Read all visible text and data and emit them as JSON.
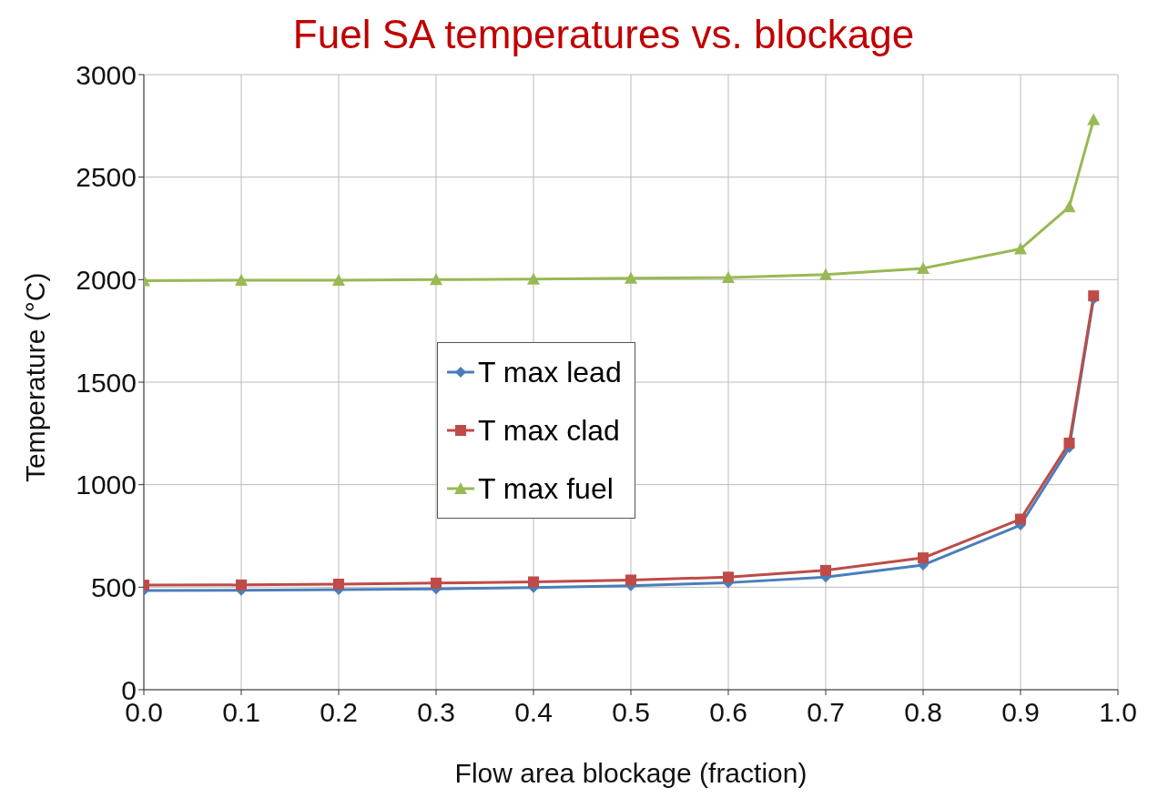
{
  "chart_data": {
    "type": "line",
    "title": "Fuel SA temperatures vs. blockage",
    "xlabel": "Flow area blockage (fraction)",
    "ylabel": "Temperature (°C)",
    "x": [
      0,
      0.1,
      0.2,
      0.3,
      0.4,
      0.5,
      0.6,
      0.7,
      0.8,
      0.9,
      0.95,
      0.975
    ],
    "series": [
      {
        "name": "T max lead",
        "color": "#4a7ebb",
        "marker": "diamond",
        "values": [
          484,
          485,
          488,
          492,
          498,
          507,
          522,
          549,
          608,
          803,
          1180,
          1905
        ]
      },
      {
        "name": "T max clad",
        "color": "#be4b48",
        "marker": "square",
        "values": [
          510,
          511,
          515,
          520,
          526,
          535,
          549,
          582,
          643,
          832,
          1203,
          1921
        ]
      },
      {
        "name": "T max fuel",
        "color": "#98b954",
        "marker": "triangle",
        "values": [
          1995,
          1997,
          1997,
          2000,
          2003,
          2007,
          2010,
          2025,
          2055,
          2150,
          2355,
          2780
        ]
      }
    ],
    "xlim": [
      0,
      1
    ],
    "xticks": [
      {
        "value": 0,
        "label": "0.0"
      },
      0.1,
      0.2,
      0.3,
      0.4,
      0.5,
      0.6,
      0.7,
      0.8,
      0.9,
      {
        "value": 1,
        "label": "1.0"
      }
    ],
    "ylim": [
      0,
      3000
    ],
    "yticks": [
      0,
      500,
      1000,
      1500,
      2000,
      2500,
      3000
    ],
    "grid": true,
    "legend": "center left",
    "line_style": "solid"
  }
}
